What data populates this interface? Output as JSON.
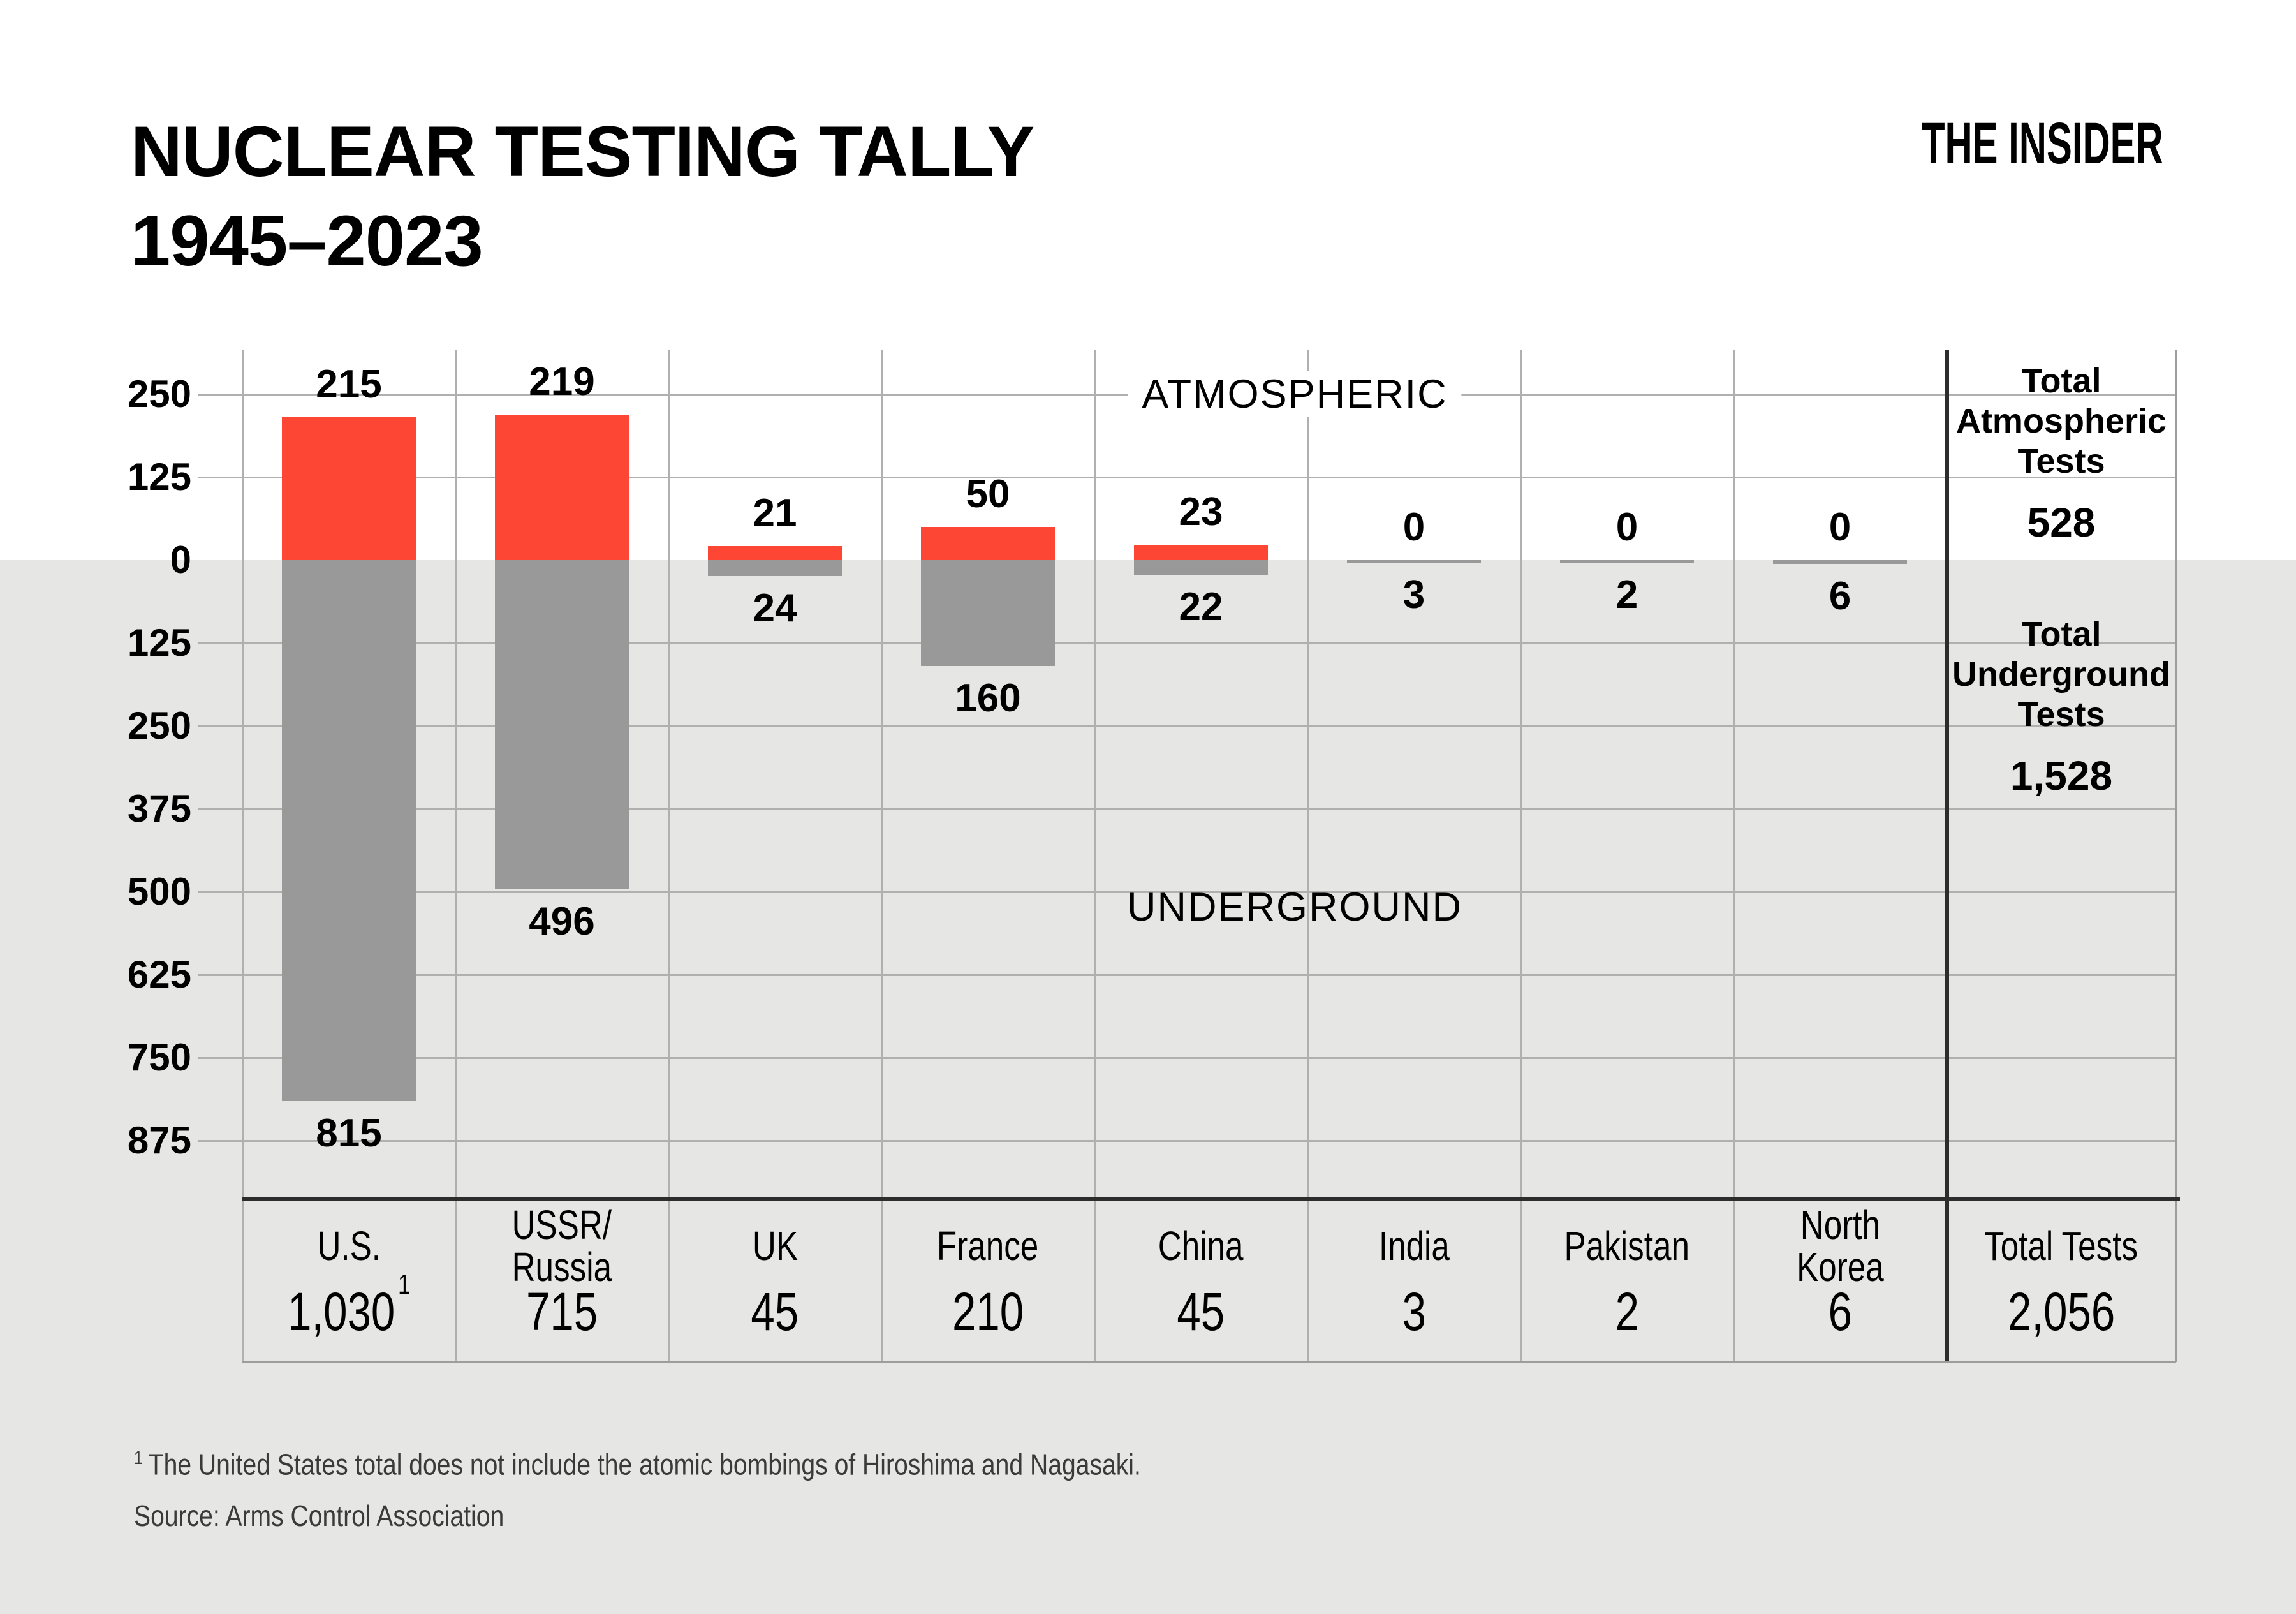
{
  "title": {
    "line1": "NUCLEAR TESTING TALLY",
    "line2": "1945–2023"
  },
  "brand": "THE INSIDER",
  "region_labels": {
    "atmospheric": "ATMOSPHERIC",
    "underground": "UNDERGROUND"
  },
  "y_axis": {
    "tick_labels": [
      "250",
      "125",
      "0",
      "125",
      "250",
      "375",
      "500",
      "625",
      "750",
      "875"
    ],
    "tick_values": [
      250,
      125,
      0,
      -125,
      -250,
      -375,
      -500,
      -625,
      -750,
      -875
    ]
  },
  "chart_data": {
    "type": "bar",
    "subtype": "diverging-columns",
    "title": "NUCLEAR TESTING TALLY 1945–2023",
    "xlabel": "",
    "ylabel": "",
    "ylim": [
      -875,
      250
    ],
    "gridline_step": 125,
    "grid": true,
    "legend_position": "in-chart-text",
    "categories": [
      "U.S.",
      "USSR/Russia",
      "UK",
      "France",
      "China",
      "India",
      "Pakistan",
      "North Korea"
    ],
    "categories_display": [
      "U.S.",
      "USSR/\nRussia",
      "UK",
      "France",
      "China",
      "India",
      "Pakistan",
      "North\nKorea"
    ],
    "series": [
      {
        "name": "Atmospheric",
        "direction": "up",
        "color": "#fd4634",
        "values": [
          215,
          219,
          21,
          50,
          23,
          0,
          0,
          0
        ]
      },
      {
        "name": "Underground",
        "direction": "down",
        "color": "#999999",
        "values": [
          815,
          496,
          24,
          160,
          22,
          3,
          2,
          6
        ]
      }
    ],
    "country_totals": [
      "1,030",
      "715",
      "45",
      "210",
      "45",
      "3",
      "2",
      "6"
    ],
    "us_total_footnote_marker": "1"
  },
  "totals_panel": {
    "atmospheric_label": "Total\nAtmospheric\nTests",
    "atmospheric_value": "528",
    "underground_label": "Total\nUnderground\nTests",
    "underground_value": "1,528",
    "total_tests_label": "Total Tests",
    "total_tests_value": "2,056"
  },
  "footnote": {
    "marker": "1",
    "text": "The United States total does not include the atomic bombings of Hiroshima and Nagasaki.",
    "source": "Source: Arms Control Association"
  },
  "colors": {
    "atmospheric_bar": "#fd4634",
    "underground_bar": "#999999",
    "lower_background": "#e6e6e5",
    "gridline": "#b0b0b0",
    "frame": "#2d2d2d",
    "footnote_text": "#3a3a3a"
  }
}
